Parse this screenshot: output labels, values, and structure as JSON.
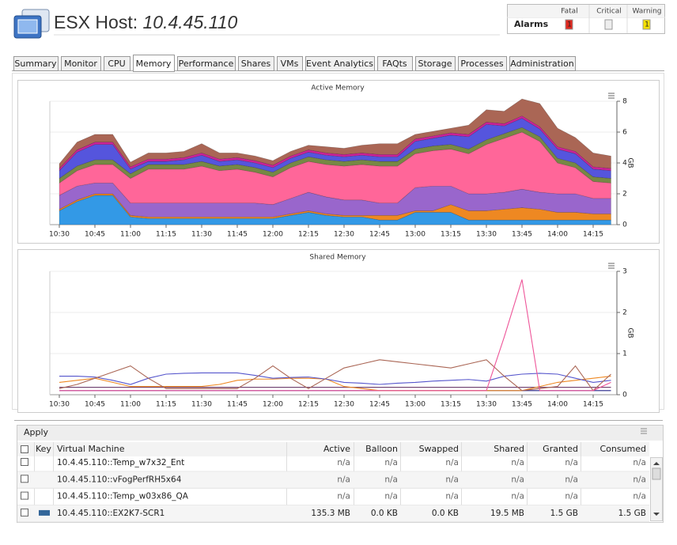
{
  "header": {
    "title": "ESX Host:",
    "host": "10.4.45.110"
  },
  "alarms": {
    "label": "Alarms",
    "columns": [
      {
        "label": "Fatal",
        "count": "1",
        "color": "#e0281e"
      },
      {
        "label": "Critical",
        "color": "#eeeeee"
      },
      {
        "label": "Warning",
        "count": "1",
        "color": "#f5e000"
      }
    ]
  },
  "tabs": {
    "items": [
      "Summary",
      "Monitor",
      "CPU",
      "Memory",
      "Performance",
      "Shares",
      "VMs",
      "Event Analytics",
      "FAQts",
      "Storage",
      "Processes",
      "Administration"
    ],
    "selected": 3
  },
  "chart_data": [
    {
      "type": "stacked-area",
      "title": "Active Memory",
      "y_label": "GB",
      "categories": [
        "10:30",
        null,
        "10:45",
        null,
        "11:00",
        null,
        "11:15",
        null,
        "11:30",
        null,
        "11:45",
        null,
        "12:00",
        null,
        "12:15",
        null,
        "12:30",
        null,
        "12:45",
        null,
        "13:00",
        null,
        "13:15",
        null,
        "13:30",
        null,
        "13:45",
        null,
        "14:00",
        null,
        "14:15",
        null
      ],
      "ylim": [
        0,
        8
      ],
      "yticks": [
        0,
        2,
        4,
        6,
        8
      ],
      "series": [
        {
          "color": "#3399e6",
          "values": [
            0.9,
            1.5,
            1.9,
            1.9,
            0.5,
            0.4,
            0.4,
            0.4,
            0.4,
            0.4,
            0.4,
            0.4,
            0.4,
            0.6,
            0.8,
            0.6,
            0.5,
            0.5,
            0.3,
            0.3,
            0.8,
            0.8,
            0.8,
            0.3,
            0.3,
            0.3,
            0.3,
            0.3,
            0.3,
            0.3,
            0.3,
            0.3
          ]
        },
        {
          "color": "#ee8822",
          "values": [
            0.1,
            0.1,
            0.1,
            0.1,
            0.1,
            0.1,
            0.1,
            0.1,
            0.1,
            0.1,
            0.1,
            0.1,
            0.1,
            0.1,
            0.1,
            0.1,
            0.1,
            0.1,
            0.3,
            0.3,
            0.1,
            0.1,
            0.5,
            0.6,
            0.6,
            0.7,
            0.8,
            0.7,
            0.5,
            0.5,
            0.4,
            0.4
          ]
        },
        {
          "color": "#9966cc",
          "values": [
            0.9,
            0.9,
            0.7,
            0.7,
            0.8,
            0.9,
            0.9,
            0.9,
            0.9,
            0.9,
            0.9,
            0.9,
            0.8,
            1.0,
            1.2,
            1.1,
            1.0,
            1.0,
            0.8,
            0.8,
            1.5,
            1.6,
            1.2,
            1.1,
            1.1,
            1.1,
            1.2,
            1.1,
            1.2,
            1.2,
            1.0,
            1.0
          ]
        },
        {
          "color": "#ff6699",
          "values": [
            0.8,
            1.0,
            1.2,
            1.2,
            1.6,
            2.2,
            2.2,
            2.2,
            2.4,
            2.1,
            2.2,
            2.0,
            1.8,
            2.0,
            2.0,
            2.1,
            2.2,
            2.3,
            2.4,
            2.4,
            2.2,
            2.3,
            2.4,
            2.6,
            3.2,
            3.5,
            3.7,
            3.3,
            2.0,
            1.7,
            1.1,
            1.0
          ]
        },
        {
          "color": "#778844",
          "values": [
            0.3,
            0.3,
            0.3,
            0.3,
            0.3,
            0.3,
            0.3,
            0.3,
            0.3,
            0.3,
            0.3,
            0.3,
            0.3,
            0.3,
            0.3,
            0.3,
            0.3,
            0.3,
            0.3,
            0.3,
            0.3,
            0.3,
            0.3,
            0.3,
            0.3,
            0.3,
            0.3,
            0.3,
            0.3,
            0.3,
            0.3,
            0.3
          ]
        },
        {
          "color": "#5555dd",
          "values": [
            0.5,
            0.9,
            1.0,
            1.0,
            0.3,
            0.2,
            0.2,
            0.3,
            0.4,
            0.3,
            0.3,
            0.3,
            0.3,
            0.3,
            0.3,
            0.3,
            0.3,
            0.3,
            0.3,
            0.3,
            0.5,
            0.5,
            0.6,
            0.8,
            1.0,
            0.5,
            0.6,
            0.5,
            0.6,
            0.6,
            0.5,
            0.5
          ]
        },
        {
          "color": "#cc2299",
          "values": [
            0.15,
            0.15,
            0.15,
            0.15,
            0.15,
            0.15,
            0.15,
            0.15,
            0.15,
            0.15,
            0.15,
            0.15,
            0.15,
            0.15,
            0.15,
            0.15,
            0.15,
            0.15,
            0.15,
            0.15,
            0.15,
            0.15,
            0.15,
            0.15,
            0.15,
            0.15,
            0.15,
            0.15,
            0.15,
            0.15,
            0.15,
            0.15
          ]
        },
        {
          "color": "#aa6655",
          "values": [
            0.3,
            0.5,
            0.5,
            0.5,
            0.3,
            0.4,
            0.4,
            0.4,
            0.6,
            0.4,
            0.3,
            0.3,
            0.3,
            0.3,
            0.3,
            0.4,
            0.4,
            0.5,
            0.7,
            0.7,
            0.3,
            0.3,
            0.3,
            0.6,
            0.8,
            0.8,
            1.1,
            1.5,
            1.2,
            0.9,
            0.9,
            0.8
          ]
        }
      ]
    },
    {
      "type": "line",
      "title": "Shared Memory",
      "y_label": "GB",
      "categories": [
        "10:30",
        null,
        "10:45",
        null,
        "11:00",
        null,
        "11:15",
        null,
        "11:30",
        null,
        "11:45",
        null,
        "12:00",
        null,
        "12:15",
        null,
        "12:30",
        null,
        "12:45",
        null,
        "13:00",
        null,
        "13:15",
        null,
        "13:30",
        null,
        "13:45",
        null,
        "14:00",
        null,
        "14:15",
        null
      ],
      "ylim": [
        0,
        3
      ],
      "yticks": [
        0,
        1,
        2,
        3
      ],
      "series": [
        {
          "color": "#222288",
          "values": [
            0.1,
            0.1,
            0.1,
            0.1,
            0.1,
            0.1,
            0.1,
            0.1,
            0.1,
            0.1,
            0.1,
            0.1,
            0.1,
            0.1,
            0.1,
            0.1,
            0.1,
            0.1,
            0.1,
            0.1,
            0.1,
            0.1,
            0.1,
            0.1,
            0.1,
            0.1,
            0.1,
            0.1,
            0.1,
            0.1,
            0.1,
            0.1
          ]
        },
        {
          "color": "#663366",
          "values": [
            0.18,
            0.18,
            0.18,
            0.18,
            0.18,
            0.18,
            0.18,
            0.18,
            0.18,
            0.18,
            0.18,
            0.18,
            0.18,
            0.18,
            0.18,
            0.18,
            0.18,
            0.18,
            0.18,
            0.18,
            0.18,
            0.18,
            0.18,
            0.18,
            0.18,
            0.18,
            0.18,
            0.18,
            0.18,
            0.18,
            0.18,
            0.18
          ]
        },
        {
          "color": "#ee8822",
          "values": [
            0.3,
            0.35,
            0.4,
            0.3,
            0.2,
            0.2,
            0.2,
            0.2,
            0.2,
            0.25,
            0.35,
            0.38,
            0.38,
            0.4,
            0.4,
            0.38,
            0.2,
            0.15,
            0.1,
            0.1,
            0.1,
            0.1,
            0.1,
            0.1,
            0.1,
            0.1,
            0.1,
            0.2,
            0.3,
            0.35,
            0.4,
            0.45
          ]
        },
        {
          "color": "#5555cc",
          "values": [
            0.45,
            0.45,
            0.43,
            0.35,
            0.25,
            0.4,
            0.5,
            0.52,
            0.53,
            0.53,
            0.53,
            0.47,
            0.4,
            0.42,
            0.43,
            0.38,
            0.3,
            0.28,
            0.25,
            0.28,
            0.3,
            0.33,
            0.35,
            0.37,
            0.33,
            0.45,
            0.5,
            0.52,
            0.5,
            0.4,
            0.3,
            0.35
          ]
        },
        {
          "color": "#aa6655",
          "values": [
            0.15,
            0.25,
            0.4,
            0.55,
            0.7,
            0.4,
            0.15,
            0.15,
            0.15,
            0.15,
            0.15,
            0.4,
            0.7,
            0.4,
            0.15,
            0.4,
            0.65,
            0.75,
            0.85,
            0.8,
            0.75,
            0.7,
            0.65,
            0.75,
            0.85,
            0.45,
            0.1,
            0.15,
            0.2,
            0.7,
            0.1,
            0.5
          ]
        },
        {
          "color": "#ee5599",
          "values": [
            0.1,
            0.1,
            0.1,
            0.1,
            0.1,
            0.1,
            0.1,
            0.1,
            0.1,
            0.1,
            0.1,
            0.1,
            0.1,
            0.1,
            0.1,
            0.1,
            0.1,
            0.1,
            0.1,
            0.1,
            0.1,
            0.1,
            0.1,
            0.1,
            0.1,
            1.4,
            2.8,
            0.1,
            0.1,
            0.1,
            0.1,
            0.3
          ]
        }
      ]
    }
  ],
  "apply": "Apply",
  "table": {
    "columns": [
      "Key",
      "Virtual Machine",
      "Active",
      "Balloon",
      "Swapped",
      "Shared",
      "Granted",
      "Consumed"
    ],
    "rows": [
      {
        "cells": [
          "10.4.45.110::Temp_w7x32_Ent",
          "n/a",
          "n/a",
          "n/a",
          "n/a",
          "n/a",
          "n/a"
        ]
      },
      {
        "cells": [
          "10.4.45.110::vFogPerfRH5x64",
          "n/a",
          "n/a",
          "n/a",
          "n/a",
          "n/a",
          "n/a"
        ]
      },
      {
        "cells": [
          "10.4.45.110::Temp_w03x86_QA",
          "n/a",
          "n/a",
          "n/a",
          "n/a",
          "n/a",
          "n/a"
        ]
      },
      {
        "cells": [
          "10.4.45.110::EX2K7-SCR1",
          "135.3 MB",
          "0.0 KB",
          "0.0 KB",
          "19.5 MB",
          "1.5 GB",
          "1.5 GB"
        ],
        "key_color": "#336699"
      }
    ]
  }
}
